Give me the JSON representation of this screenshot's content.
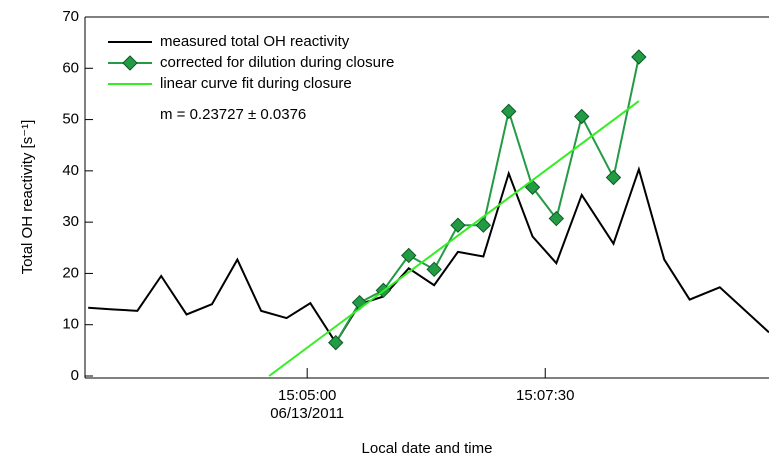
{
  "chart_data": {
    "type": "line",
    "x_label": "Local date and time",
    "y_label": "Total OH reactivity [s⁻¹]",
    "annotation": "m = 0.23727 ± 0.0376",
    "xlim": [
      "2011-06-13 15:02:40",
      "2011-06-13 15:09:51"
    ],
    "xticks": [
      {
        "value": "2011-06-13 15:05:00",
        "label": "15:05:00\n06/13/2011"
      },
      {
        "value": "2011-06-13 15:07:30",
        "label": "15:07:30"
      }
    ],
    "ylim": [
      0,
      70
    ],
    "yticks": [
      0,
      10,
      20,
      30,
      40,
      50,
      60,
      70
    ],
    "legend": "upper left",
    "series": [
      {
        "name": "measured total OH reactivity",
        "color": "#000000",
        "marker": "none",
        "x": [
          "2011-06-13 15:02:42",
          "2011-06-13 15:02:57",
          "2011-06-13 15:03:13",
          "2011-06-13 15:03:28",
          "2011-06-13 15:03:44",
          "2011-06-13 15:04:00",
          "2011-06-13 15:04:16",
          "2011-06-13 15:04:31",
          "2011-06-13 15:04:47",
          "2011-06-13 15:05:02",
          "2011-06-13 15:05:18",
          "2011-06-13 15:05:33",
          "2011-06-13 15:05:48",
          "2011-06-13 15:06:04",
          "2011-06-13 15:06:20",
          "2011-06-13 15:06:35",
          "2011-06-13 15:06:51",
          "2011-06-13 15:07:07",
          "2011-06-13 15:07:22",
          "2011-06-13 15:07:37",
          "2011-06-13 15:07:53",
          "2011-06-13 15:08:13",
          "2011-06-13 15:08:29",
          "2011-06-13 15:08:45",
          "2011-06-13 15:09:01",
          "2011-06-13 15:09:20",
          "2011-06-13 15:09:51"
        ],
        "values": [
          13.3,
          13.0,
          12.7,
          19.5,
          12.0,
          14.0,
          22.7,
          12.7,
          11.3,
          14.2,
          6.5,
          14.0,
          15.5,
          21.0,
          17.7,
          24.2,
          23.3,
          39.5,
          27.2,
          22.0,
          35.3,
          25.8,
          40.3,
          22.7,
          14.9,
          17.3,
          8.5
        ]
      },
      {
        "name": "corrected for dilution during closure",
        "color": "#239b45",
        "marker": "diamond",
        "x": [
          "2011-06-13 15:05:18",
          "2011-06-13 15:05:33",
          "2011-06-13 15:05:48",
          "2011-06-13 15:06:04",
          "2011-06-13 15:06:20",
          "2011-06-13 15:06:35",
          "2011-06-13 15:06:51",
          "2011-06-13 15:07:07",
          "2011-06-13 15:07:22",
          "2011-06-13 15:07:37",
          "2011-06-13 15:07:53",
          "2011-06-13 15:08:13",
          "2011-06-13 15:08:29"
        ],
        "values": [
          6.5,
          14.3,
          16.7,
          23.5,
          20.8,
          29.4,
          29.4,
          51.6,
          36.8,
          30.7,
          50.6,
          38.7,
          62.2
        ]
      },
      {
        "name": "linear curve fit during closure",
        "color": "#33ee22",
        "marker": "none",
        "x": [
          "2011-06-13 15:04:36",
          "2011-06-13 15:08:29"
        ],
        "values": [
          0,
          53.6
        ]
      }
    ]
  }
}
